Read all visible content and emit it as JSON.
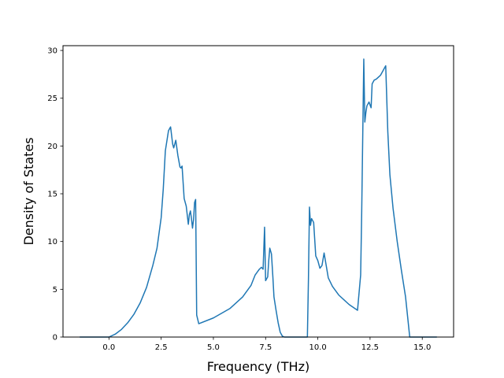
{
  "chart_data": {
    "type": "line",
    "title": "",
    "xlabel": "Frequency (THz)",
    "ylabel": "Density of States",
    "xlim": [
      -2.2,
      16.5
    ],
    "ylim": [
      0,
      30.5
    ],
    "grid": false,
    "legend": "none",
    "xticks": [
      0.0,
      2.5,
      5.0,
      7.5,
      10.0,
      12.5,
      15.0
    ],
    "xtick_labels": [
      "0.0",
      "2.5",
      "5.0",
      "7.5",
      "10.0",
      "12.5",
      "15.0"
    ],
    "yticks": [
      0,
      5,
      10,
      15,
      20,
      25,
      30
    ],
    "ytick_labels": [
      "0",
      "5",
      "10",
      "15",
      "20",
      "25",
      "30"
    ],
    "series": [
      {
        "color": "#1f77b4",
        "x": [
          -1.4,
          0.0,
          0.3,
          0.6,
          0.9,
          1.2,
          1.5,
          1.8,
          2.1,
          2.3,
          2.5,
          2.6,
          2.7,
          2.85,
          2.95,
          3.05,
          3.1,
          3.2,
          3.3,
          3.4,
          3.45,
          3.5,
          3.6,
          3.7,
          3.8,
          3.85,
          3.9,
          3.95,
          4.0,
          4.05,
          4.1,
          4.15,
          4.2,
          4.3,
          5.0,
          5.8,
          6.4,
          6.8,
          7.0,
          7.2,
          7.3,
          7.38,
          7.45,
          7.5,
          7.6,
          7.65,
          7.7,
          7.78,
          7.85,
          7.9,
          8.0,
          8.1,
          8.2,
          8.3,
          8.4,
          9.0,
          9.5,
          9.55,
          9.6,
          9.65,
          9.7,
          9.8,
          9.9,
          10.0,
          10.1,
          10.2,
          10.3,
          10.5,
          10.7,
          11.0,
          11.5,
          11.9,
          12.05,
          12.1,
          12.2,
          12.25,
          12.3,
          12.35,
          12.45,
          12.55,
          12.6,
          12.7,
          12.8,
          13.0,
          13.15,
          13.25,
          13.35,
          13.45,
          13.6,
          13.8,
          14.0,
          14.2,
          14.4,
          15.0,
          15.7
        ],
        "y": [
          0.0,
          0.0,
          0.3,
          0.8,
          1.5,
          2.4,
          3.6,
          5.2,
          7.5,
          9.3,
          12.5,
          15.5,
          19.5,
          21.6,
          22.0,
          20.2,
          19.8,
          20.6,
          19.0,
          17.8,
          17.7,
          17.9,
          14.5,
          13.7,
          11.8,
          12.8,
          13.2,
          12.4,
          11.4,
          12.3,
          14.1,
          14.4,
          2.3,
          1.4,
          2.0,
          3.0,
          4.2,
          5.4,
          6.5,
          7.1,
          7.3,
          7.1,
          11.5,
          5.9,
          6.3,
          8.0,
          9.3,
          8.7,
          6.2,
          4.2,
          2.8,
          1.5,
          0.5,
          0.1,
          0.0,
          0.0,
          0.0,
          6.0,
          13.6,
          11.7,
          12.4,
          12.0,
          8.5,
          8.0,
          7.2,
          7.5,
          8.8,
          6.2,
          5.3,
          4.4,
          3.4,
          2.8,
          6.5,
          13.0,
          29.1,
          22.5,
          23.5,
          24.2,
          24.6,
          24.0,
          26.5,
          26.9,
          27.0,
          27.4,
          28.0,
          28.4,
          21.5,
          17.0,
          13.5,
          10.0,
          7.0,
          4.2,
          0.0,
          0.0,
          0.0
        ]
      }
    ]
  }
}
